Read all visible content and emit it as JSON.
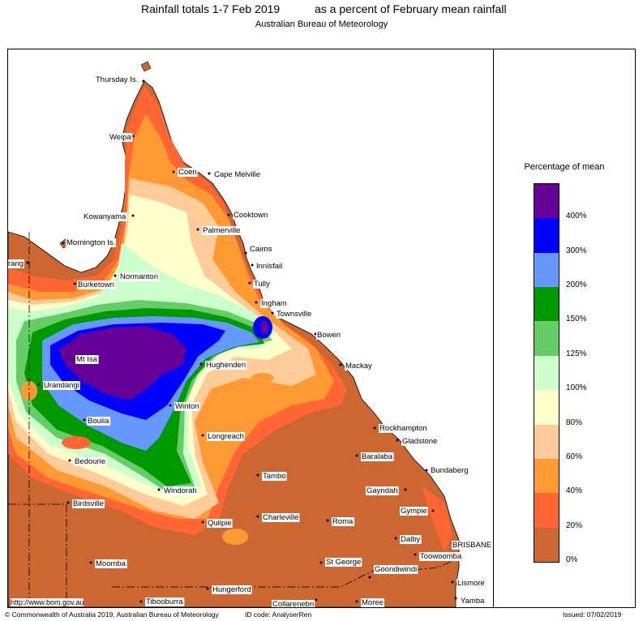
{
  "header": {
    "title_left": "Rainfall totals 1-7 Feb 2019",
    "title_right": "as a percent of February mean rainfall",
    "subtitle": "Australian Bureau of Meteorology"
  },
  "legend": {
    "title": "Percentage of mean",
    "bands": [
      {
        "label": "400%",
        "color": "#660099"
      },
      {
        "label": "300%",
        "color": "#0000ff"
      },
      {
        "label": "200%",
        "color": "#6699ff"
      },
      {
        "label": "150%",
        "color": "#009900"
      },
      {
        "label": "125%",
        "color": "#66cc66"
      },
      {
        "label": "100%",
        "color": "#ccffcc"
      },
      {
        "label": "80%",
        "color": "#ffffcc"
      },
      {
        "label": "60%",
        "color": "#ffcc99"
      },
      {
        "label": "40%",
        "color": "#ff9933"
      },
      {
        "label": "20%",
        "color": "#ff6633"
      },
      {
        "label": "0%",
        "color": "#cc6633"
      }
    ]
  },
  "places": {
    "thursday_is": "Thursday Is.",
    "weipa": "Weipa",
    "coen": "Coen",
    "cape_melville": "Cape Melville",
    "kowanyama": "Kowanyama",
    "cooktown": "Cooktown",
    "palmerville": "Palmerville",
    "mornington_is": "Mornington Is.",
    "cairns": "Cairns",
    "innisfail": "Innisfail",
    "rang": "rang",
    "normanton": "Normanton",
    "burketown": "Burketown",
    "tully": "Tully",
    "ingham": "Ingham",
    "townsville": "Townsville",
    "bowen": "Bowen",
    "mt_isa": "Mt Isa",
    "hughenden": "Hughenden",
    "mackay": "Mackay",
    "urandangi": "Urandangi",
    "winton": "Winton",
    "boulia": "Boulia",
    "rockhampton": "Rockhampton",
    "longreach": "Longreach",
    "gladstone": "Gladstone",
    "bedourie": "Bedourie",
    "baralaba": "Baralaba",
    "tambo": "Tambo",
    "bundaberg": "Bundaberg",
    "windorah": "Windorah",
    "gayndah": "Gayndah",
    "birdsville": "Birdsville",
    "gympie": "Gympie",
    "quilpie": "Quilpie",
    "charleville": "Charleville",
    "roma": "Roma",
    "dalby": "Dalby",
    "brisbane": "BRISBANE",
    "toowoomba": "Toowoomba",
    "moomba": "Moomba",
    "st_george": "St George",
    "goondiwindi": "Goondiwindi",
    "lismore": "Lismore",
    "hungerford": "Hungerford",
    "tibooburra": "Tibooburra",
    "collarenebri": "Collarenebri",
    "moree": "Moree",
    "yamba": "Yamba"
  },
  "footer": {
    "url": "http://www.bom.gov.au",
    "copyright": "© Commonwealth of Australia 2019, Australian Bureau of Meteorology",
    "id_code": "ID code: AnalyserRen",
    "issued": "Issued: 07/02/2019"
  }
}
